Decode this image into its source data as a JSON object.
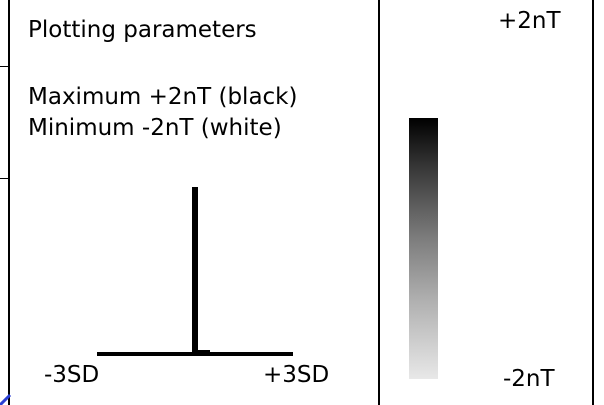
{
  "plotting_panel": {
    "title": "Plotting parameters",
    "maximum_line": "Maximum +2nT (black)",
    "minimum_line": "Minimum -2nT (white)",
    "histogram": {
      "low_label": "-3SD",
      "high_label": "+3SD"
    }
  },
  "color_scale": {
    "max_label": "+2nT",
    "min_label": "-2nT",
    "top_color": "#000000",
    "bottom_color": "#e8e8e8"
  },
  "colors": {
    "foreground": "#000000",
    "background": "#ffffff",
    "accent_stroke": "#2a3fd4"
  }
}
